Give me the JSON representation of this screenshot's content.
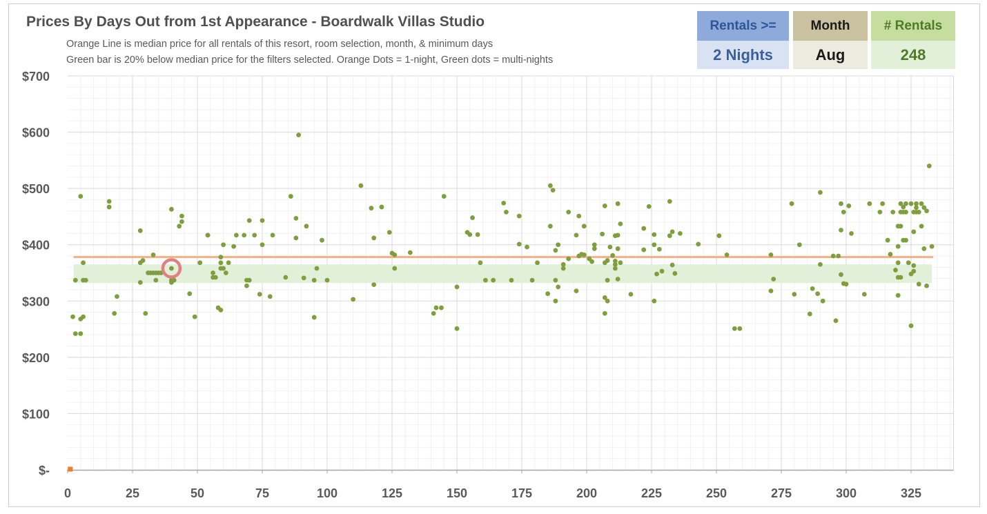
{
  "header": {
    "title": "Prices By Days Out from 1st Appearance - Boardwalk Villas Studio",
    "subtitle_1": "Orange Line is median price for all rentals of this resort, room selection, month, & minimum days",
    "subtitle_2": "Green bar is 20% below median price for the filters selected. Orange Dots = 1-night, Green dots = multi-nights"
  },
  "filters": {
    "rentals": {
      "label": "Rentals >=",
      "value": "2 Nights"
    },
    "month": {
      "label": "Month",
      "value": "Aug"
    },
    "count": {
      "label": "# Rentals",
      "value": "248"
    }
  },
  "colors": {
    "median_line": "#f4b183",
    "band": "#e2efd9",
    "green_dot": "#7f9f3e",
    "orange_dot": "#ed7d31",
    "highlight_ring": "#e08080",
    "grid_major": "#d9d9d9",
    "grid_minor": "#f2f2f2"
  },
  "chart_data": {
    "type": "scatter",
    "xlim": [
      0,
      340
    ],
    "ylim": [
      0,
      700
    ],
    "x_ticks": [
      0,
      25,
      50,
      75,
      100,
      125,
      150,
      175,
      200,
      225,
      250,
      275,
      300,
      325
    ],
    "x_tick_labels": [
      "0",
      "25",
      "50",
      "75",
      "100",
      "125",
      "150",
      "175",
      "200",
      "225",
      "250",
      "275",
      "300",
      "325"
    ],
    "y_ticks": [
      0,
      100,
      200,
      300,
      400,
      500,
      600,
      700
    ],
    "y_tick_labels": [
      "$-",
      "$100",
      "$200",
      "$300",
      "$400",
      "$500",
      "$600",
      "$700"
    ],
    "grid": true,
    "median_price": 378,
    "band": [
      332,
      365
    ],
    "highlight": {
      "x": 40,
      "y": 358
    },
    "series": [
      {
        "marker": "orange",
        "points": [
          [
            1,
            0
          ]
        ]
      },
      {
        "marker": "green",
        "points": [
          [
            2,
            272
          ],
          [
            3,
            337
          ],
          [
            3,
            242
          ],
          [
            5,
            486
          ],
          [
            5,
            268
          ],
          [
            5,
            242
          ],
          [
            6,
            272
          ],
          [
            6,
            368
          ],
          [
            6,
            337
          ],
          [
            7,
            337
          ],
          [
            16,
            477
          ],
          [
            16,
            467
          ],
          [
            18,
            278
          ],
          [
            19,
            308
          ],
          [
            28,
            425
          ],
          [
            28,
            333
          ],
          [
            28,
            368
          ],
          [
            29,
            372
          ],
          [
            30,
            278
          ],
          [
            31,
            350
          ],
          [
            32,
            350
          ],
          [
            33,
            382
          ],
          [
            33,
            350
          ],
          [
            34,
            350
          ],
          [
            34,
            337
          ],
          [
            35,
            350
          ],
          [
            36,
            350
          ],
          [
            40,
            463
          ],
          [
            40,
            337
          ],
          [
            40,
            333
          ],
          [
            40,
            358
          ],
          [
            41,
            337
          ],
          [
            43,
            433
          ],
          [
            44,
            451
          ],
          [
            44,
            441
          ],
          [
            47,
            313
          ],
          [
            49,
            272
          ],
          [
            51,
            368
          ],
          [
            54,
            417
          ],
          [
            54,
            417
          ],
          [
            56,
            350
          ],
          [
            56,
            342
          ],
          [
            57,
            342
          ],
          [
            58,
            288
          ],
          [
            59,
            378
          ],
          [
            59,
            368
          ],
          [
            59,
            358
          ],
          [
            59,
            284
          ],
          [
            60,
            400
          ],
          [
            60,
            358
          ],
          [
            61,
            350
          ],
          [
            62,
            368
          ],
          [
            64,
            397
          ],
          [
            65,
            417
          ],
          [
            68,
            417
          ],
          [
            69,
            327
          ],
          [
            69,
            337
          ],
          [
            70,
            337
          ],
          [
            70,
            443
          ],
          [
            72,
            417
          ],
          [
            74,
            312
          ],
          [
            75,
            443
          ],
          [
            75,
            400
          ],
          [
            78,
            308
          ],
          [
            79,
            417
          ],
          [
            84,
            342
          ],
          [
            86,
            486
          ],
          [
            88,
            412
          ],
          [
            88,
            447
          ],
          [
            89,
            595
          ],
          [
            91,
            341
          ],
          [
            92,
            433
          ],
          [
            95,
            271
          ],
          [
            95,
            337
          ],
          [
            96,
            358
          ],
          [
            98,
            408
          ],
          [
            100,
            337
          ],
          [
            110,
            303
          ],
          [
            113,
            505
          ],
          [
            117,
            465
          ],
          [
            118,
            412
          ],
          [
            118,
            329
          ],
          [
            121,
            467
          ],
          [
            124,
            422
          ],
          [
            125,
            385
          ],
          [
            126,
            382
          ],
          [
            126,
            358
          ],
          [
            132,
            386
          ],
          [
            141,
            278
          ],
          [
            142,
            288
          ],
          [
            144,
            288
          ],
          [
            145,
            486
          ],
          [
            150,
            325
          ],
          [
            150,
            251
          ],
          [
            154,
            422
          ],
          [
            155,
            418
          ],
          [
            156,
            448
          ],
          [
            158,
            418
          ],
          [
            159,
            368
          ],
          [
            161,
            337
          ],
          [
            164,
            337
          ],
          [
            168,
            474
          ],
          [
            169,
            458
          ],
          [
            171,
            337
          ],
          [
            174,
            451
          ],
          [
            174,
            401
          ],
          [
            177,
            396
          ],
          [
            179,
            337
          ],
          [
            181,
            368
          ],
          [
            185,
            313
          ],
          [
            186,
            505
          ],
          [
            186,
            433
          ],
          [
            187,
            497
          ],
          [
            188,
            390
          ],
          [
            188,
            337
          ],
          [
            188,
            300
          ],
          [
            189,
            400
          ],
          [
            189,
            325
          ],
          [
            191,
            358
          ],
          [
            191,
            365
          ],
          [
            193,
            375
          ],
          [
            193,
            458
          ],
          [
            196,
            318
          ],
          [
            196,
            417
          ],
          [
            197,
            380
          ],
          [
            197,
            451
          ],
          [
            198,
            383
          ],
          [
            199,
            433
          ],
          [
            199,
            382
          ],
          [
            201,
            375
          ],
          [
            202,
            370
          ],
          [
            203,
            400
          ],
          [
            203,
            393
          ],
          [
            206,
            419
          ],
          [
            207,
            469
          ],
          [
            207,
            306
          ],
          [
            207,
            278
          ],
          [
            207,
            368
          ],
          [
            208,
            300
          ],
          [
            208,
            372
          ],
          [
            208,
            337
          ],
          [
            209,
            396
          ],
          [
            210,
            381
          ],
          [
            211,
            416
          ],
          [
            211,
            371
          ],
          [
            211,
            365
          ],
          [
            211,
            358
          ],
          [
            212,
            473
          ],
          [
            212,
            417
          ],
          [
            212,
            393
          ],
          [
            212,
            339
          ],
          [
            213,
            368
          ],
          [
            213,
            437
          ],
          [
            217,
            312
          ],
          [
            222,
            391
          ],
          [
            222,
            429
          ],
          [
            224,
            468
          ],
          [
            226,
            418
          ],
          [
            226,
            400
          ],
          [
            226,
            300
          ],
          [
            227,
            348
          ],
          [
            228,
            392
          ],
          [
            229,
            353
          ],
          [
            232,
            416
          ],
          [
            232,
            477
          ],
          [
            233,
            423
          ],
          [
            233,
            364
          ],
          [
            234,
            349
          ],
          [
            236,
            420
          ],
          [
            243,
            401
          ],
          [
            251,
            416
          ],
          [
            254,
            382
          ],
          [
            257,
            251
          ],
          [
            259,
            251
          ],
          [
            271,
            382
          ],
          [
            271,
            318
          ],
          [
            272,
            339
          ],
          [
            279,
            473
          ],
          [
            280,
            312
          ],
          [
            282,
            400
          ],
          [
            286,
            277
          ],
          [
            287,
            322
          ],
          [
            289,
            313
          ],
          [
            290,
            493
          ],
          [
            290,
            365
          ],
          [
            291,
            300
          ],
          [
            295,
            380
          ],
          [
            296,
            265
          ],
          [
            297,
            380
          ],
          [
            298,
            473
          ],
          [
            298,
            426
          ],
          [
            298,
            347
          ],
          [
            299,
            331
          ],
          [
            299,
            458
          ],
          [
            300,
            330
          ],
          [
            301,
            469
          ],
          [
            302,
            420
          ],
          [
            307,
            312
          ],
          [
            309,
            473
          ],
          [
            313,
            458
          ],
          [
            314,
            473
          ],
          [
            316,
            408
          ],
          [
            317,
            383
          ],
          [
            318,
            458
          ],
          [
            319,
            355
          ],
          [
            320,
            397
          ],
          [
            320,
            342
          ],
          [
            320,
            310
          ],
          [
            320,
            368
          ],
          [
            320,
            433
          ],
          [
            321,
            473
          ],
          [
            321,
            458
          ],
          [
            321,
            433
          ],
          [
            321,
            342
          ],
          [
            322,
            467
          ],
          [
            322,
            458
          ],
          [
            322,
            408
          ],
          [
            323,
            473
          ],
          [
            323,
            458
          ],
          [
            323,
            408
          ],
          [
            324,
            368
          ],
          [
            325,
            473
          ],
          [
            325,
            256
          ],
          [
            325,
            348
          ],
          [
            326,
            458
          ],
          [
            326,
            423
          ],
          [
            326,
            363
          ],
          [
            326,
            353
          ],
          [
            327,
            473
          ],
          [
            327,
            466
          ],
          [
            327,
            458
          ],
          [
            328,
            458
          ],
          [
            328,
            330
          ],
          [
            329,
            473
          ],
          [
            329,
            433
          ],
          [
            330,
            466
          ],
          [
            330,
            393
          ],
          [
            331,
            460
          ],
          [
            331,
            327
          ],
          [
            332,
            540
          ],
          [
            333,
            397
          ]
        ]
      }
    ]
  }
}
